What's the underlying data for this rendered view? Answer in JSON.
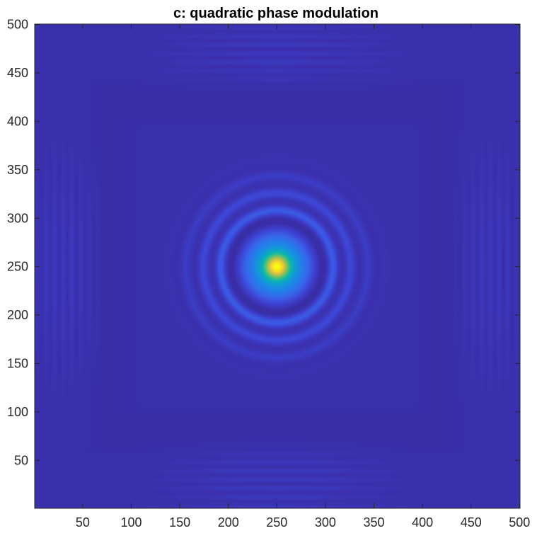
{
  "chart_data": {
    "type": "heatmap",
    "title": "c: quadratic phase modulation",
    "xlabel": "",
    "ylabel": "",
    "xlim": [
      0.5,
      500.5
    ],
    "ylim": [
      500.5,
      0.5
    ],
    "y_reversed": true,
    "grid": false,
    "legend": "none",
    "x_ticks": [
      50,
      100,
      150,
      200,
      250,
      300,
      350,
      400,
      450,
      500
    ],
    "y_ticks": [
      50,
      100,
      150,
      200,
      250,
      300,
      350,
      400,
      450,
      500
    ],
    "x_tick_labels": [
      "50",
      "100",
      "150",
      "200",
      "250",
      "300",
      "350",
      "400",
      "450",
      "500"
    ],
    "y_tick_labels": [
      "50",
      "100",
      "150",
      "200",
      "250",
      "300",
      "350",
      "400",
      "450",
      "500"
    ],
    "colormap": "parula",
    "colors": {
      "background": "#3a2ea8",
      "peak": "#f5e52a",
      "mid": "#1fb8a0",
      "ring": "#3f61e6"
    },
    "features": {
      "central_peak": {
        "x": 250,
        "y": 250,
        "half_width": 10
      },
      "main_lobe_radius": 38,
      "rings": [
        {
          "radius": 58,
          "level": 0.28
        },
        {
          "radius": 76,
          "level": 0.22
        },
        {
          "radius": 94,
          "level": 0.17
        },
        {
          "radius": 112,
          "level": 0.12
        }
      ],
      "edge_fringes": [
        {
          "x": 30,
          "y": 250
        },
        {
          "x": 470,
          "y": 250
        },
        {
          "x": 250,
          "y": 30
        },
        {
          "x": 250,
          "y": 470
        }
      ]
    }
  }
}
